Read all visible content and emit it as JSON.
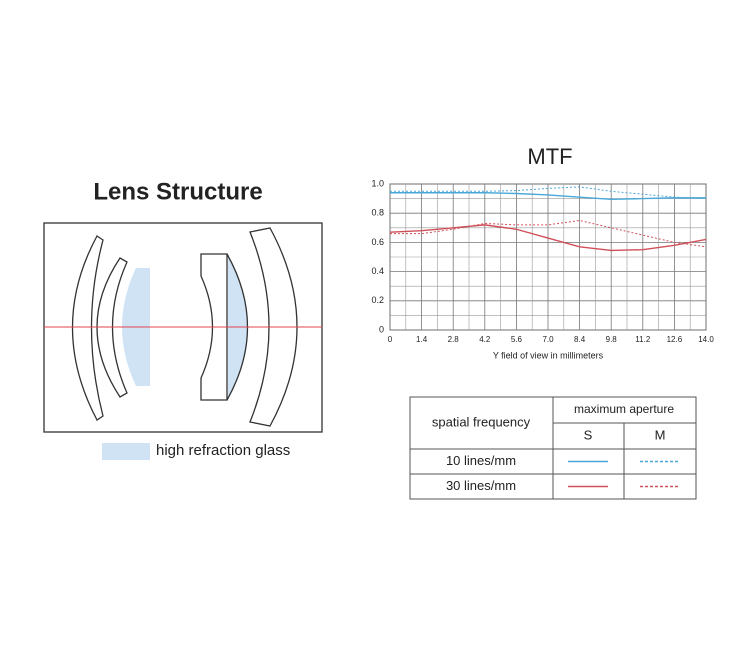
{
  "lens_structure": {
    "title": "Lens Structure",
    "legend": "high refraction glass"
  },
  "chart_data": {
    "type": "line",
    "title": "MTF",
    "x_label": "Y field of view in millimeters",
    "x": [
      0,
      1.4,
      2.8,
      4.2,
      5.6,
      7.0,
      8.4,
      9.8,
      11.2,
      12.6,
      14.0
    ],
    "series": [
      {
        "color": "#4aa8d8",
        "style": "solid",
        "values": [
          0.94,
          0.94,
          0.94,
          0.94,
          0.935,
          0.925,
          0.91,
          0.895,
          0.9,
          0.905,
          0.905
        ]
      },
      {
        "color": "#4aa8d8",
        "style": "dashed",
        "values": [
          0.95,
          0.95,
          0.95,
          0.95,
          0.955,
          0.97,
          0.98,
          0.95,
          0.93,
          0.91,
          0.9
        ]
      },
      {
        "color": "#d0505a",
        "style": "solid",
        "values": [
          0.67,
          0.68,
          0.7,
          0.72,
          0.69,
          0.63,
          0.57,
          0.545,
          0.55,
          0.58,
          0.62
        ]
      },
      {
        "color": "#d0505a",
        "style": "dashed",
        "values": [
          0.66,
          0.66,
          0.69,
          0.73,
          0.72,
          0.72,
          0.75,
          0.7,
          0.65,
          0.6,
          0.57
        ]
      }
    ],
    "xlim": [
      0,
      14
    ],
    "xticks": [
      0,
      1.4,
      2.8,
      4.2,
      5.6,
      {
        "value": 7,
        "label": "7.0"
      },
      8.4,
      9.8,
      11.2,
      12.6,
      {
        "value": 14,
        "label": "14.0"
      }
    ],
    "ylim": [
      0,
      1
    ],
    "yticks": [
      0,
      0.2,
      0.4,
      0.6,
      0.8,
      {
        "value": 1,
        "label": "1.0"
      }
    ],
    "grid": true,
    "minor_grid": true
  },
  "legend_table": {
    "row_header": "spatial frequency",
    "column_group": "maximum aperture",
    "columns": [
      "S",
      "M"
    ],
    "rows": [
      "10 lines/mm",
      "30 lines/mm"
    ]
  }
}
